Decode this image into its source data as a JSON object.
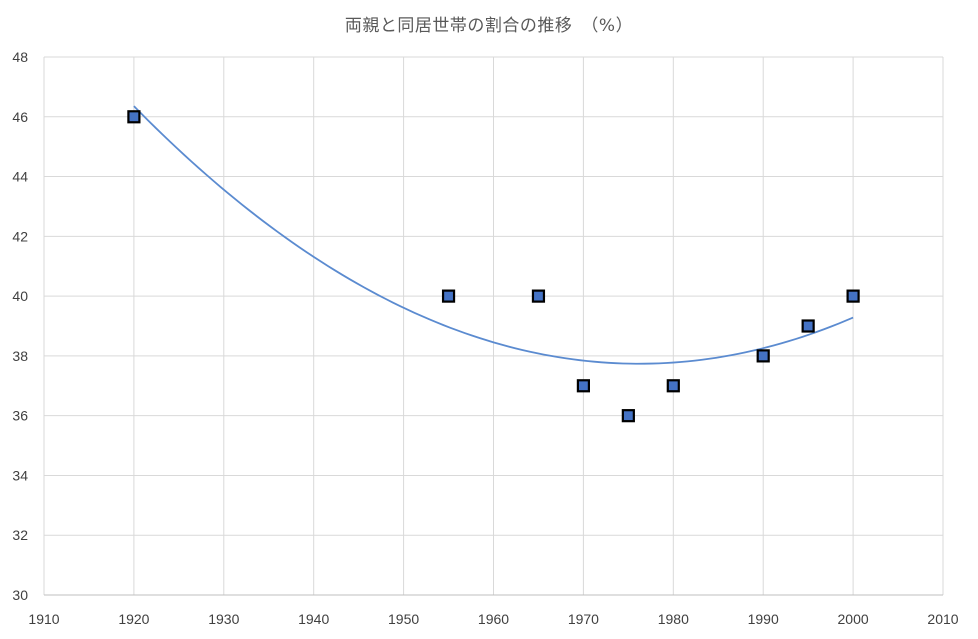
{
  "chart_data": {
    "type": "scatter",
    "title": "両親と同居世帯の割合の推移　（%）",
    "xlabel": "",
    "ylabel": "",
    "xlim": [
      1910,
      2010
    ],
    "ylim": [
      30,
      48
    ],
    "x_ticks": [
      1910,
      1920,
      1930,
      1940,
      1950,
      1960,
      1970,
      1980,
      1990,
      2000,
      2010
    ],
    "y_ticks": [
      30,
      32,
      34,
      36,
      38,
      40,
      42,
      44,
      46,
      48
    ],
    "grid": true,
    "legend": "none",
    "series": [
      {
        "points": [
          {
            "x": 1920,
            "y": 46
          },
          {
            "x": 1955,
            "y": 40
          },
          {
            "x": 1965,
            "y": 40
          },
          {
            "x": 1970,
            "y": 37
          },
          {
            "x": 1975,
            "y": 36
          },
          {
            "x": 1980,
            "y": 37
          },
          {
            "x": 1990,
            "y": 38
          },
          {
            "x": 1995,
            "y": 39
          },
          {
            "x": 2000,
            "y": 40
          }
        ],
        "marker": "square",
        "color": "#4472C4"
      }
    ],
    "trendline": {
      "type": "polynomial",
      "order": 2,
      "x_range": [
        1920,
        2000
      ],
      "color": "#5B8BD0"
    }
  }
}
